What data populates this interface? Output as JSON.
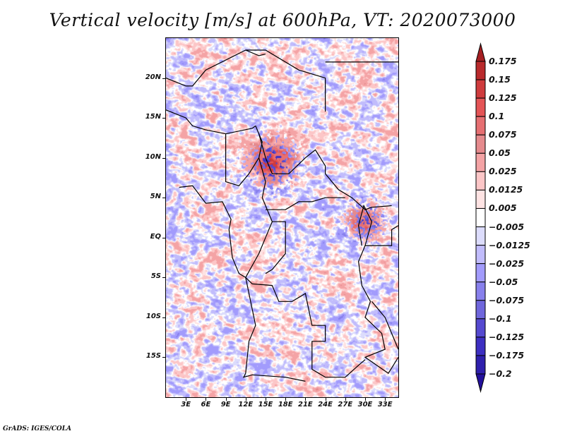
{
  "title": "Vertical velocity [m/s] at 600hPa, VT: 2020073000",
  "footer": "GrADS: IGES/COLA",
  "map": {
    "variable": "Vertical velocity",
    "units": "m/s",
    "level": "600hPa",
    "valid_time": "2020073000",
    "lon_range": [
      0,
      35
    ],
    "lat_range": [
      -20,
      25
    ],
    "y_ticks": [
      {
        "label": "20N",
        "lat": 20
      },
      {
        "label": "15N",
        "lat": 15
      },
      {
        "label": "10N",
        "lat": 10
      },
      {
        "label": "5N",
        "lat": 5
      },
      {
        "label": "EQ",
        "lat": 0
      },
      {
        "label": "5S",
        "lat": -5
      },
      {
        "label": "10S",
        "lat": -10
      },
      {
        "label": "15S",
        "lat": -15
      }
    ],
    "x_ticks": [
      {
        "label": "3E",
        "lon": 3
      },
      {
        "label": "6E",
        "lon": 6
      },
      {
        "label": "9E",
        "lon": 9
      },
      {
        "label": "12E",
        "lon": 12
      },
      {
        "label": "15E",
        "lon": 15
      },
      {
        "label": "18E",
        "lon": 18
      },
      {
        "label": "21E",
        "lon": 21
      },
      {
        "label": "24E",
        "lon": 24
      },
      {
        "label": "27E",
        "lon": 27
      },
      {
        "label": "30E",
        "lon": 30
      },
      {
        "label": "33E",
        "lon": 33
      }
    ]
  },
  "colorbar": {
    "levels": [
      "0.175",
      "0.15",
      "0.125",
      "0.1",
      "0.075",
      "0.05",
      "0.025",
      "0.0125",
      "0.005",
      "−0.005",
      "−0.0125",
      "−0.025",
      "−0.05",
      "−0.075",
      "−0.1",
      "−0.125",
      "−0.175",
      "−0.2"
    ],
    "colors": [
      "#a51f22",
      "#b92a2c",
      "#cf3b3d",
      "#e45456",
      "#e66f72",
      "#e58a8d",
      "#f4a3a5",
      "#fcc6c7",
      "#fee3e3",
      "#ffffff",
      "#dcdcfc",
      "#c1bcfc",
      "#a29bfc",
      "#8880ec",
      "#6f66dc",
      "#5549d0",
      "#3d2fc2",
      "#2f20ad",
      "#23119c"
    ]
  }
}
